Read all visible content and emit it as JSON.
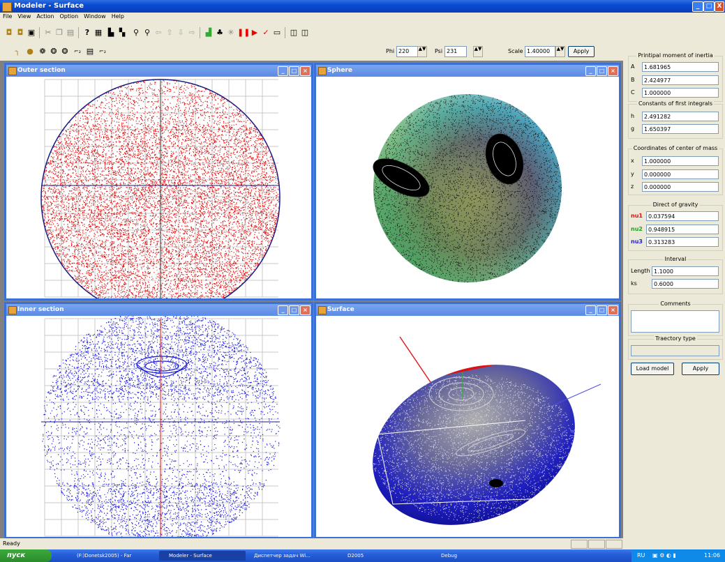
{
  "window": {
    "title": "Modeler - Surface",
    "min": "_",
    "max": "□",
    "close": "X"
  },
  "menu": [
    "File",
    "View",
    "Action",
    "Option",
    "Window",
    "Help"
  ],
  "toolbar": {
    "phi_label": "Phi",
    "phi_value": "220",
    "psi_label": "Psi",
    "psi_value": "231",
    "scale_label": "Scale",
    "scale_value": "1.40000",
    "apply_label": "Apply"
  },
  "windows": {
    "outer": "Outer section",
    "sphere": "Sphere",
    "inner": "Inner section",
    "surface": "Surface"
  },
  "panel": {
    "inertia": {
      "title": "Printipal moment of inertia",
      "A": "1.681965",
      "B": "2.424977",
      "C": "1.000000",
      "kA": "A",
      "kB": "B",
      "kC": "C"
    },
    "integrals": {
      "title": "Constants of first integrals",
      "h": "2.491282",
      "g": "1.650397",
      "kh": "h",
      "kg": "g"
    },
    "center": {
      "title": "Coordinates of center of mass",
      "x": "1.000000",
      "y": "0.000000",
      "z": "0.000000",
      "kx": "x",
      "ky": "y",
      "kz": "z"
    },
    "gravity": {
      "title": "Direct of gravity",
      "nu1": "0.037594",
      "nu2": "0.948915",
      "nu3": "0.313283",
      "k1": "nu1",
      "k2": "nu2",
      "k3": "nu3"
    },
    "interval": {
      "title": "Interval",
      "length_label": "Length",
      "length": "1.1000",
      "ks_label": "ks",
      "ks": "0.6000"
    },
    "comments": {
      "title": "Comments"
    },
    "trajectory": {
      "title": "Traectory type"
    },
    "load_label": "Load model",
    "apply_label": "Apply"
  },
  "status": {
    "text": "Ready"
  },
  "taskbar": {
    "start": "пуск",
    "tasks": [
      "(F:)Donetsk2005) - Far",
      "Modeler - Surface",
      "Диспетчер задач Wi...",
      "D2005",
      "Debug"
    ],
    "lang": "RU",
    "time": "11:06"
  },
  "colors": {
    "outer_points": "#e01010",
    "inner_points": "#1a1ae0",
    "frame": "#3b70d6"
  }
}
